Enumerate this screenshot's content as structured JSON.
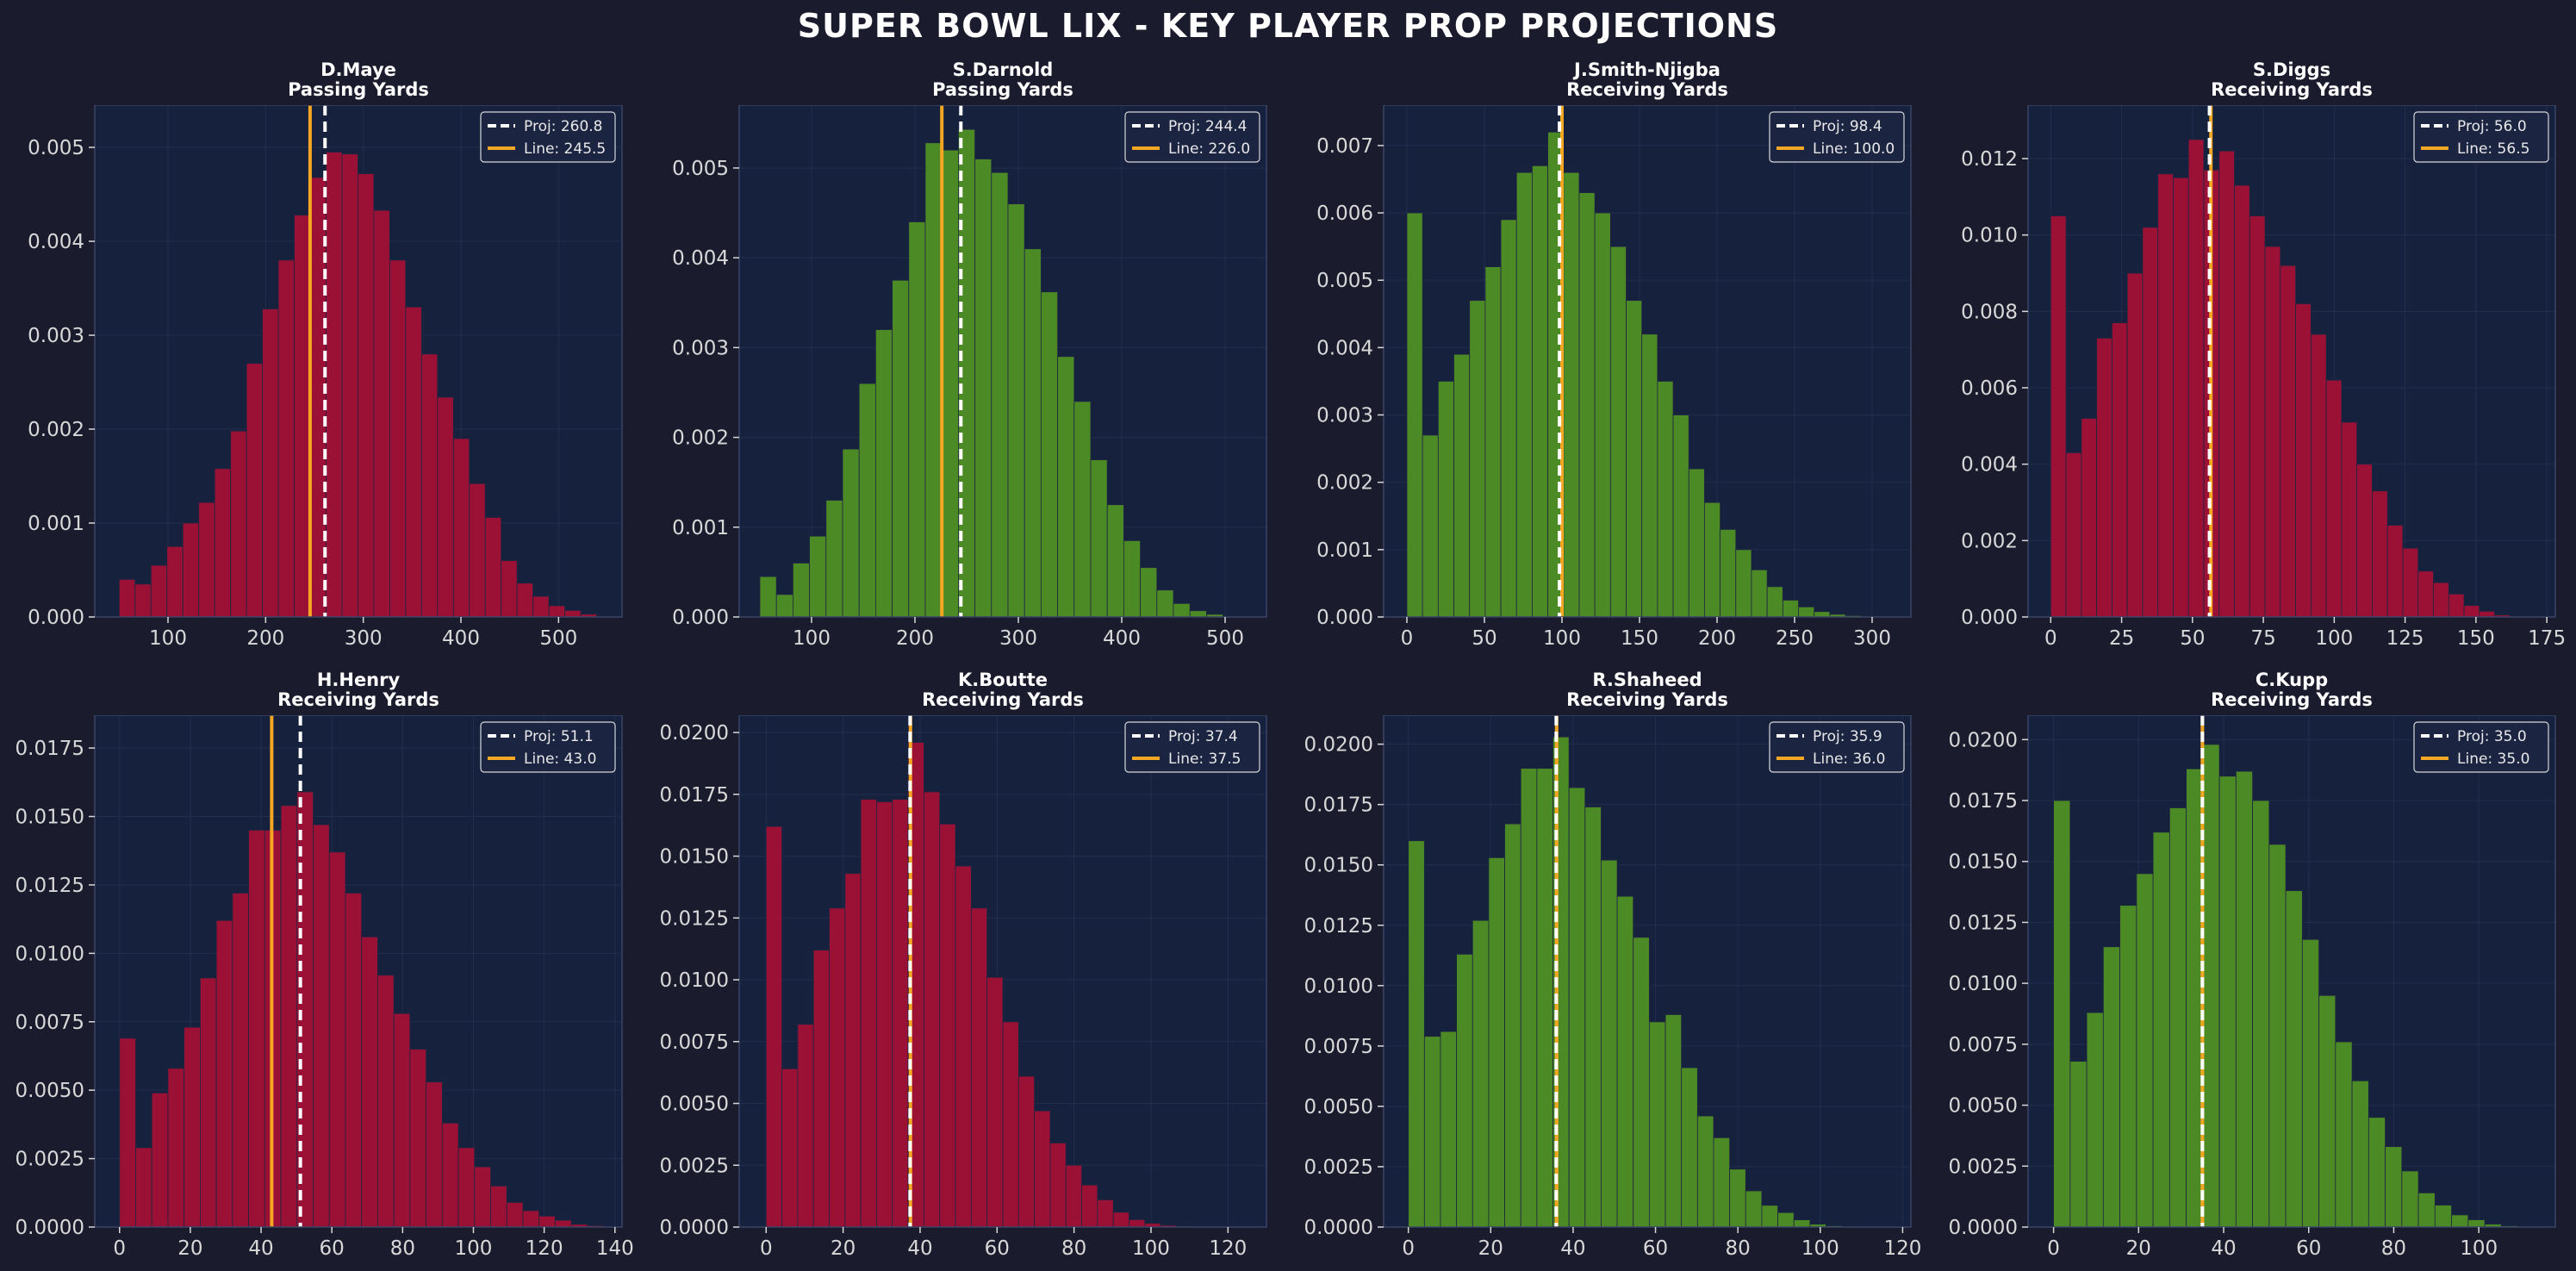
{
  "title": "SUPER BOWL LIX - KEY PLAYER PROP PROJECTIONS",
  "colors": {
    "background": "#1b1b2e",
    "axes_bg": "#16213e",
    "red_bar": "#9b1035",
    "green_bar": "#4c8a26",
    "proj_line": "#ffffff",
    "book_line": "#f5a623",
    "tick_text": "#d8d8d8",
    "spine": "#3a4566"
  },
  "chart_data": [
    {
      "type": "bar",
      "player": "D.Maye",
      "stat": "Passing Yards",
      "color": "red",
      "xlim": [
        25,
        565
      ],
      "ylim": [
        0,
        0.00545
      ],
      "xticks": [
        100,
        200,
        300,
        400,
        500
      ],
      "xtick_labels": [
        "100",
        "200",
        "300",
        "400",
        "500"
      ],
      "yticks": [
        0,
        0.001,
        0.002,
        0.003,
        0.004,
        0.005
      ],
      "ytick_labels": [
        "0.000",
        "0.001",
        "0.002",
        "0.003",
        "0.004",
        "0.005"
      ],
      "bin_start": 50,
      "bin_width": 16.3,
      "values": [
        0.0004,
        0.00035,
        0.00055,
        0.00075,
        0.001,
        0.00122,
        0.00158,
        0.00198,
        0.0027,
        0.00328,
        0.0038,
        0.00428,
        0.00468,
        0.00495,
        0.00493,
        0.00472,
        0.00433,
        0.0038,
        0.0033,
        0.0028,
        0.00234,
        0.0019,
        0.00142,
        0.00106,
        0.0006,
        0.00036,
        0.00022,
        0.00012,
        7e-05,
        3e-05
      ],
      "proj": 260.8,
      "line": 245.5,
      "legend": {
        "proj": "Proj: 260.8",
        "line": "Line: 245.5"
      }
    },
    {
      "type": "bar",
      "player": "S.Darnold",
      "stat": "Passing Yards",
      "color": "green",
      "xlim": [
        30,
        540
      ],
      "ylim": [
        0,
        0.0057
      ],
      "xticks": [
        100,
        200,
        300,
        400,
        500
      ],
      "xtick_labels": [
        "100",
        "200",
        "300",
        "400",
        "500"
      ],
      "yticks": [
        0,
        0.001,
        0.002,
        0.003,
        0.004,
        0.005
      ],
      "ytick_labels": [
        "0.000",
        "0.001",
        "0.002",
        "0.003",
        "0.004",
        "0.005"
      ],
      "bin_start": 50,
      "bin_width": 16,
      "values": [
        0.00045,
        0.00025,
        0.0006,
        0.0009,
        0.0013,
        0.00187,
        0.0026,
        0.0032,
        0.00375,
        0.0044,
        0.00528,
        0.0052,
        0.00543,
        0.0051,
        0.00495,
        0.0046,
        0.0041,
        0.00362,
        0.0029,
        0.0024,
        0.00175,
        0.00125,
        0.00085,
        0.00055,
        0.0003,
        0.00015,
        7e-05,
        3e-05
      ],
      "proj": 244.4,
      "line": 226.0,
      "legend": {
        "proj": "Proj: 244.4",
        "line": "Line: 226.0"
      }
    },
    {
      "type": "bar",
      "player": "J.Smith-Njigba",
      "stat": "Receiving Yards",
      "color": "green",
      "xlim": [
        -15,
        325
      ],
      "ylim": [
        0,
        0.0076
      ],
      "xticks": [
        0,
        50,
        100,
        150,
        200,
        250,
        300
      ],
      "xtick_labels": [
        "0",
        "50",
        "100",
        "150",
        "200",
        "250",
        "300"
      ],
      "yticks": [
        0,
        0.001,
        0.002,
        0.003,
        0.004,
        0.005,
        0.006,
        0.007
      ],
      "ytick_labels": [
        "0.000",
        "0.001",
        "0.002",
        "0.003",
        "0.004",
        "0.005",
        "0.006",
        "0.007"
      ],
      "bin_start": 0,
      "bin_width": 10.1,
      "values": [
        0.006,
        0.0027,
        0.0035,
        0.0039,
        0.0047,
        0.0052,
        0.0059,
        0.0066,
        0.0067,
        0.0072,
        0.0066,
        0.0063,
        0.006,
        0.0055,
        0.0047,
        0.0042,
        0.0035,
        0.003,
        0.0022,
        0.0017,
        0.0013,
        0.001,
        0.0007,
        0.00045,
        0.00025,
        0.00015,
        8e-05,
        4e-05,
        2e-05,
        1e-05
      ],
      "proj": 98.4,
      "line": 100.0,
      "legend": {
        "proj": "Proj: 98.4",
        "line": "Line: 100.0"
      }
    },
    {
      "type": "bar",
      "player": "S.Diggs",
      "stat": "Receiving Yards",
      "color": "red",
      "xlim": [
        -8,
        178
      ],
      "ylim": [
        0,
        0.0134
      ],
      "xticks": [
        0,
        25,
        50,
        75,
        100,
        125,
        150,
        175
      ],
      "xtick_labels": [
        "0",
        "25",
        "50",
        "75",
        "100",
        "125",
        "150",
        "175"
      ],
      "yticks": [
        0,
        0.002,
        0.004,
        0.006,
        0.008,
        0.01,
        0.012
      ],
      "ytick_labels": [
        "0.000",
        "0.002",
        "0.004",
        "0.006",
        "0.008",
        "0.010",
        "0.012"
      ],
      "bin_start": 0,
      "bin_width": 5.4,
      "values": [
        0.0105,
        0.0043,
        0.0052,
        0.0073,
        0.0077,
        0.009,
        0.0102,
        0.0116,
        0.0115,
        0.0125,
        0.0117,
        0.0122,
        0.0113,
        0.0105,
        0.0097,
        0.0092,
        0.0082,
        0.0074,
        0.0062,
        0.0051,
        0.004,
        0.0033,
        0.0024,
        0.0018,
        0.0012,
        0.0009,
        0.0006,
        0.0003,
        0.00015,
        5e-05
      ],
      "proj": 56.0,
      "line": 56.5,
      "legend": {
        "proj": "Proj: 56.0",
        "line": "Line: 56.5"
      }
    },
    {
      "type": "bar",
      "player": "H.Henry",
      "stat": "Receiving Yards",
      "color": "red",
      "xlim": [
        -7,
        142
      ],
      "ylim": [
        0,
        0.0187
      ],
      "xticks": [
        0,
        20,
        40,
        60,
        80,
        100,
        120,
        140
      ],
      "xtick_labels": [
        "0",
        "20",
        "40",
        "60",
        "80",
        "100",
        "120",
        "140"
      ],
      "yticks": [
        0,
        0.0025,
        0.005,
        0.0075,
        0.01,
        0.0125,
        0.015,
        0.0175
      ],
      "ytick_labels": [
        "0.0000",
        "0.0025",
        "0.0050",
        "0.0075",
        "0.0100",
        "0.0125",
        "0.0150",
        "0.0175"
      ],
      "bin_start": 0,
      "bin_width": 4.56,
      "values": [
        0.0069,
        0.0029,
        0.0049,
        0.0058,
        0.0073,
        0.0091,
        0.0112,
        0.0122,
        0.0145,
        0.0145,
        0.0154,
        0.0159,
        0.0147,
        0.0137,
        0.0122,
        0.0106,
        0.0092,
        0.0078,
        0.0065,
        0.0053,
        0.0038,
        0.0029,
        0.0022,
        0.0015,
        0.0009,
        0.0006,
        0.0004,
        0.00025,
        0.0001,
        5e-05
      ],
      "proj": 51.1,
      "line": 43.0,
      "legend": {
        "proj": "Proj: 51.1",
        "line": "Line: 43.0"
      }
    },
    {
      "type": "bar",
      "player": "K.Boutte",
      "stat": "Receiving Yards",
      "color": "red",
      "xlim": [
        -7,
        130
      ],
      "ylim": [
        0,
        0.0207
      ],
      "xticks": [
        0,
        20,
        40,
        60,
        80,
        100,
        120
      ],
      "xtick_labels": [
        "0",
        "20",
        "40",
        "60",
        "80",
        "100",
        "120"
      ],
      "yticks": [
        0,
        0.0025,
        0.005,
        0.0075,
        0.01,
        0.0125,
        0.015,
        0.0175,
        0.02
      ],
      "ytick_labels": [
        "0.0000",
        "0.0025",
        "0.0050",
        "0.0075",
        "0.0100",
        "0.0125",
        "0.0150",
        "0.0175",
        "0.0200"
      ],
      "bin_start": 0,
      "bin_width": 4.1,
      "values": [
        0.0162,
        0.0064,
        0.0082,
        0.0112,
        0.0129,
        0.0143,
        0.0173,
        0.0172,
        0.0173,
        0.0196,
        0.0176,
        0.0163,
        0.0146,
        0.0129,
        0.0101,
        0.0083,
        0.0061,
        0.0047,
        0.0034,
        0.0025,
        0.0017,
        0.0011,
        0.0006,
        0.0003,
        0.00015,
        7e-05,
        3e-05
      ],
      "proj": 37.4,
      "line": 37.5,
      "legend": {
        "proj": "Proj: 37.4",
        "line": "Line: 37.5"
      }
    },
    {
      "type": "bar",
      "player": "R.Shaheed",
      "stat": "Receiving Yards",
      "color": "green",
      "xlim": [
        -6,
        122
      ],
      "ylim": [
        0,
        0.0212
      ],
      "xticks": [
        0,
        20,
        40,
        60,
        80,
        100,
        120
      ],
      "xtick_labels": [
        "0",
        "20",
        "40",
        "60",
        "80",
        "100",
        "120"
      ],
      "yticks": [
        0,
        0.0025,
        0.005,
        0.0075,
        0.01,
        0.0125,
        0.015,
        0.0175,
        0.02
      ],
      "ytick_labels": [
        "0.0000",
        "0.0025",
        "0.0050",
        "0.0075",
        "0.0100",
        "0.0125",
        "0.0150",
        "0.0175",
        "0.0200"
      ],
      "bin_start": 0,
      "bin_width": 3.9,
      "values": [
        0.016,
        0.0079,
        0.0081,
        0.0113,
        0.0127,
        0.0153,
        0.0167,
        0.019,
        0.019,
        0.0203,
        0.0182,
        0.0174,
        0.0152,
        0.0137,
        0.012,
        0.0085,
        0.0088,
        0.0066,
        0.0046,
        0.0037,
        0.0024,
        0.0015,
        0.0009,
        0.0006,
        0.0003,
        0.00012,
        5e-05,
        2e-05
      ],
      "proj": 35.9,
      "line": 36.0,
      "legend": {
        "proj": "Proj: 35.9",
        "line": "Line: 36.0"
      }
    },
    {
      "type": "bar",
      "player": "C.Kupp",
      "stat": "Receiving Yards",
      "color": "green",
      "xlim": [
        -6,
        118
      ],
      "ylim": [
        0,
        0.021
      ],
      "xticks": [
        0,
        20,
        40,
        60,
        80,
        100
      ],
      "xtick_labels": [
        "0",
        "20",
        "40",
        "60",
        "80",
        "100"
      ],
      "yticks": [
        0,
        0.0025,
        0.005,
        0.0075,
        0.01,
        0.0125,
        0.015,
        0.0175,
        0.02
      ],
      "ytick_labels": [
        "0.0000",
        "0.0025",
        "0.0050",
        "0.0075",
        "0.0100",
        "0.0125",
        "0.0150",
        "0.0175",
        "0.0200"
      ],
      "bin_start": 0,
      "bin_width": 3.9,
      "values": [
        0.0175,
        0.0068,
        0.0088,
        0.0115,
        0.0132,
        0.0145,
        0.0162,
        0.0172,
        0.0188,
        0.0198,
        0.0185,
        0.0187,
        0.0175,
        0.0157,
        0.0138,
        0.0118,
        0.0095,
        0.0076,
        0.006,
        0.0045,
        0.0033,
        0.0023,
        0.0014,
        0.0009,
        0.0005,
        0.0003,
        0.00012,
        5e-05
      ],
      "proj": 35.0,
      "line": 35.0,
      "legend": {
        "proj": "Proj: 35.0",
        "line": "Line: 35.0"
      }
    }
  ]
}
